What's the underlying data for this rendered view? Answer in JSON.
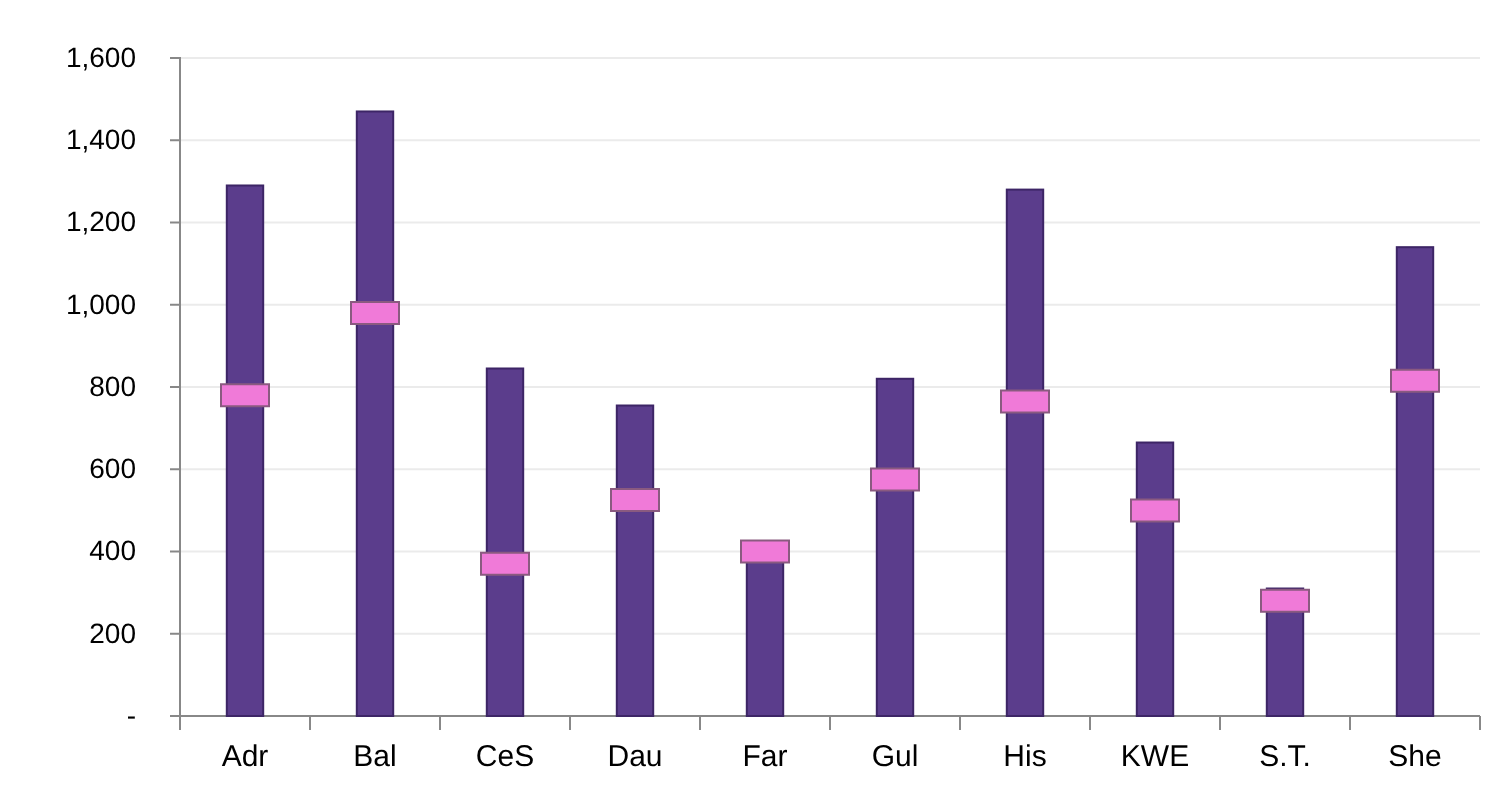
{
  "chart_data": {
    "type": "bar",
    "categories": [
      "Adr",
      "Bal",
      "CeS",
      "Dau",
      "Far",
      "Gul",
      "His",
      "KWE",
      "S.T.",
      "She"
    ],
    "series": [
      {
        "type": "bar",
        "color": "#5b3d8c",
        "values": [
          1290,
          1470,
          845,
          755,
          380,
          820,
          1280,
          665,
          310,
          1140
        ]
      },
      {
        "type": "scatter",
        "color": "#f07ad8",
        "values": [
          780,
          980,
          370,
          525,
          400,
          575,
          765,
          500,
          280,
          815
        ]
      }
    ],
    "ylim": [
      0,
      1600
    ],
    "yticks": [
      {
        "value": 0,
        "label": "-"
      },
      {
        "value": 200,
        "label": "200"
      },
      {
        "value": 400,
        "label": "400"
      },
      {
        "value": 600,
        "label": "600"
      },
      {
        "value": 800,
        "label": "800"
      },
      {
        "value": 1000,
        "label": "1,000"
      },
      {
        "value": 1200,
        "label": "1,200"
      },
      {
        "value": 1400,
        "label": "1,400"
      },
      {
        "value": 1600,
        "label": "1,600"
      }
    ],
    "grid": "y"
  }
}
